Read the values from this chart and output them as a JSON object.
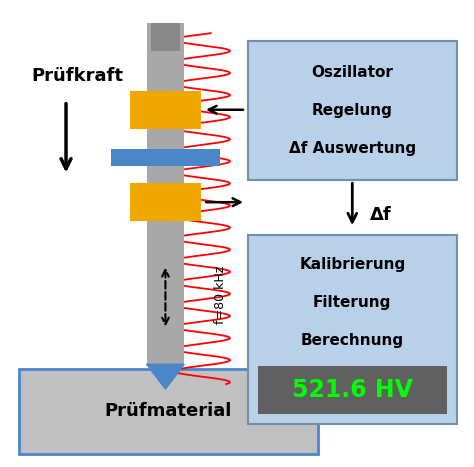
{
  "bg_color": "#ffffff",
  "probe_body_color": "#a8a8a8",
  "probe_tip_color": "#4a86c8",
  "yellow_block_color": "#f0a800",
  "blue_clamp_color": "#4a86c8",
  "box1_color": "#b8d0e8",
  "box2_color": "#b8d0e8",
  "result_bg_color": "#606060",
  "result_text_color": "#00ff00",
  "material_color": "#c0c0c0",
  "material_border_color": "#4a86c8",
  "text_color": "#000000",
  "prufkraft_label": "Prüfkraft",
  "prufmaterial_label": "Prüfmaterial",
  "freq_label": "f=80 kHz",
  "box1_lines": [
    "Oszillator",
    "Regelung",
    "Δf Auswertung"
  ],
  "delta_f_label": "Δf",
  "box2_lines": [
    "Kalibrierung",
    "Filterung",
    "Berechnung"
  ],
  "result_label": "521.6 HV",
  "figsize": [
    4.74,
    4.67
  ],
  "dpi": 100
}
